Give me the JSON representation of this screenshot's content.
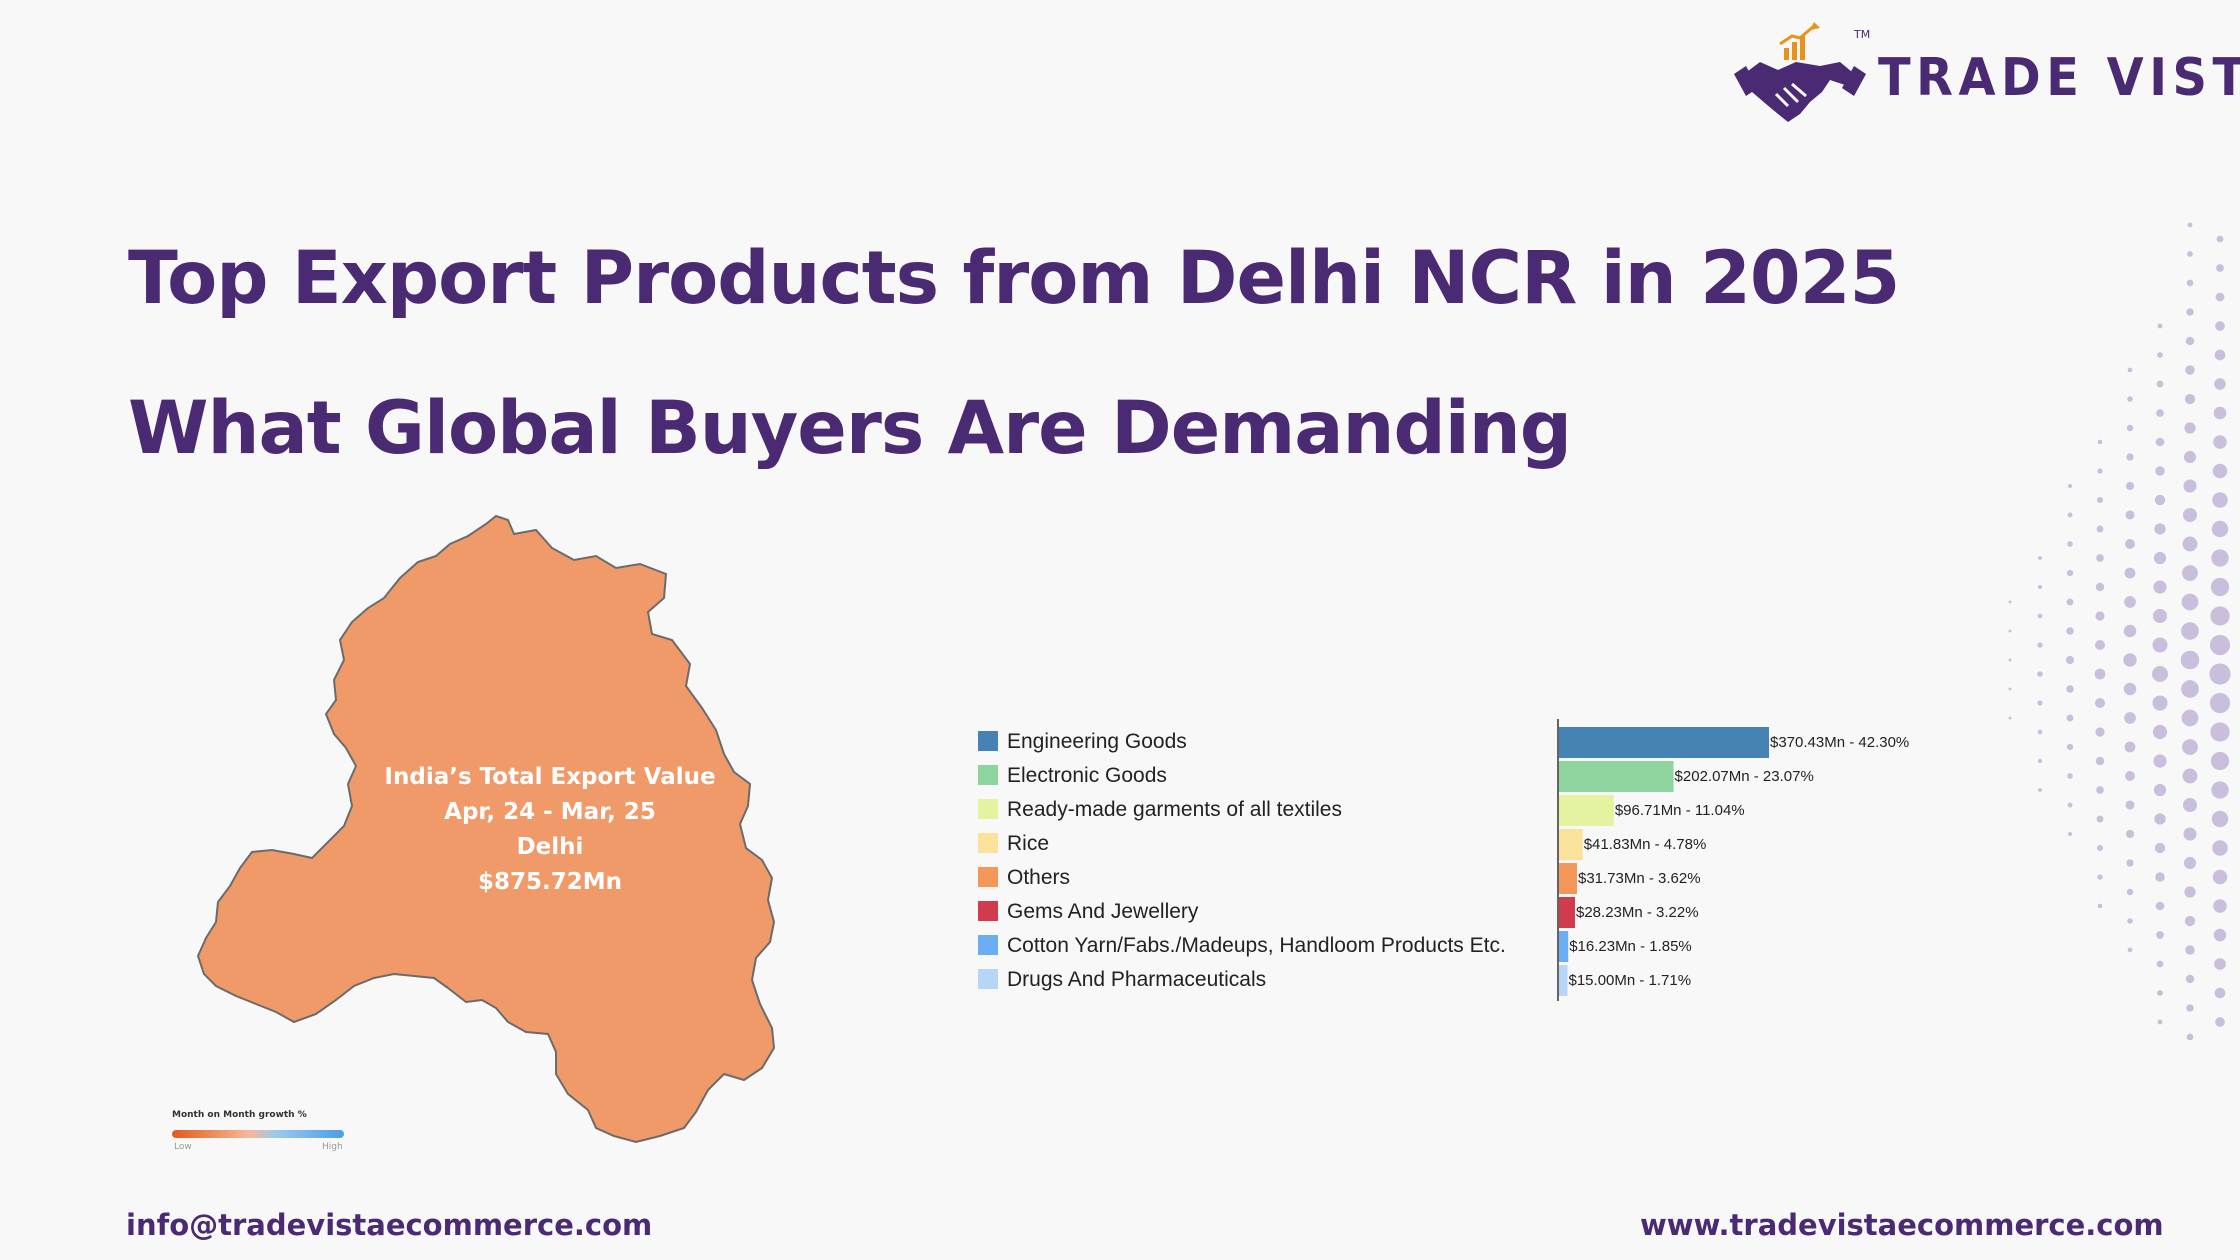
{
  "brand": {
    "name": "TRADE VISTA",
    "tm": "TM",
    "color": "#4a2a72",
    "accent": "#e8921a",
    "icon": "handshake-growth-icon"
  },
  "header": {
    "title": "Top Export Products from Delhi NCR in 2025",
    "subtitle": "What Global Buyers Are Demanding"
  },
  "map": {
    "region": "Delhi",
    "fill_color": "#ef9a68",
    "label_lines": [
      "India’s Total Export Value",
      "Apr, 24 - Mar, 25",
      "Delhi",
      "$875.72Mn"
    ],
    "legend": {
      "title": "Month on Month growth %",
      "low": "Low",
      "high": "High"
    }
  },
  "chart_data": {
    "type": "bar",
    "orientation": "horizontal",
    "categories": [
      "Engineering Goods",
      "Electronic Goods",
      "Ready-made garments of all textiles",
      "Rice",
      "Others",
      "Gems And Jewellery",
      "Cotton Yarn/Fabs./Madeups, Handloom Products Etc.",
      "Drugs And Pharmaceuticals"
    ],
    "values": [
      370.43,
      202.07,
      96.71,
      41.83,
      31.73,
      28.23,
      16.23,
      15.0
    ],
    "percentages": [
      42.3,
      23.07,
      11.04,
      4.78,
      3.62,
      3.22,
      1.85,
      1.71
    ],
    "value_labels": [
      "$370.43Mn - 42.30%",
      "$202.07Mn - 23.07%",
      "$96.71Mn - 11.04%",
      "$41.83Mn - 4.78%",
      "$31.73Mn - 3.62%",
      "$28.23Mn - 3.22%",
      "$16.23Mn - 1.85%",
      "$15.00Mn - 1.71%"
    ],
    "colors": [
      "#4683b4",
      "#8fd39e",
      "#e3f3a0",
      "#fbe29b",
      "#f59758",
      "#d23b4e",
      "#6aaef3",
      "#b6d6f7"
    ],
    "legend_position": "left",
    "grid": false
  },
  "footer": {
    "email": "info@tradevistaecommerce.com",
    "website": "www.tradevistaecommerce.com"
  }
}
